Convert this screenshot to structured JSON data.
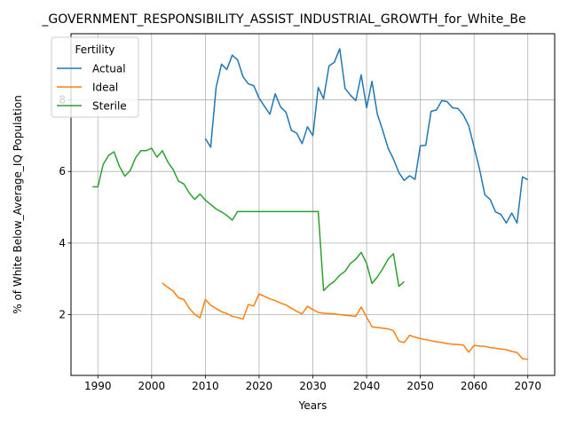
{
  "chart_data": {
    "type": "line",
    "title": "_GOVERNMENT_RESPONSIBILITY_ASSIST_INDUSTRIAL_GROWTH_for_White_Be",
    "xlabel": "Years",
    "ylabel": "% of White Below_Average_IQ Population",
    "xlim": [
      1985,
      2075
    ],
    "ylim": [
      0.3,
      9.85
    ],
    "xticks": [
      1990,
      2000,
      2010,
      2020,
      2030,
      2040,
      2050,
      2060,
      2070
    ],
    "yticks": [
      2,
      4,
      6,
      8
    ],
    "grid": true,
    "legend": {
      "title": "Fertility",
      "placement": "top-left"
    },
    "series": [
      {
        "name": "Actual",
        "color": "#1f77b4",
        "x": [
          2010,
          2011,
          2012,
          2013,
          2014,
          2015,
          2016,
          2017,
          2018,
          2019,
          2020,
          2021,
          2022,
          2023,
          2024,
          2025,
          2026,
          2027,
          2028,
          2029,
          2030,
          2031,
          2032,
          2033,
          2034,
          2035,
          2036,
          2037,
          2038,
          2039,
          2040,
          2041,
          2042,
          2043,
          2044,
          2045,
          2046,
          2047,
          2048,
          2049,
          2050,
          2051,
          2052,
          2053,
          2054,
          2055,
          2056,
          2057,
          2058,
          2059,
          2060,
          2061,
          2062,
          2063,
          2064,
          2065,
          2066,
          2067,
          2068,
          2069,
          2070
        ],
        "y": [
          6.92,
          6.68,
          8.35,
          9.0,
          8.85,
          9.25,
          9.12,
          8.65,
          8.45,
          8.4,
          8.05,
          7.82,
          7.6,
          8.17,
          7.8,
          7.66,
          7.15,
          7.07,
          6.78,
          7.25,
          7.0,
          8.35,
          8.03,
          8.95,
          9.05,
          9.43,
          8.32,
          8.13,
          7.98,
          8.7,
          7.78,
          8.52,
          7.6,
          7.15,
          6.65,
          6.35,
          5.97,
          5.75,
          5.88,
          5.78,
          6.72,
          6.73,
          7.68,
          7.72,
          7.98,
          7.95,
          7.78,
          7.76,
          7.58,
          7.28,
          6.68,
          6.08,
          5.35,
          5.22,
          4.87,
          4.8,
          4.56,
          4.84,
          4.56,
          5.85,
          5.77
        ]
      },
      {
        "name": "Ideal",
        "color": "#ff7f0e",
        "x": [
          2002,
          2003,
          2004,
          2005,
          2006,
          2007,
          2008,
          2009,
          2010,
          2011,
          2012,
          2013,
          2014,
          2015,
          2016,
          2017,
          2018,
          2019,
          2020,
          2021,
          2022,
          2023,
          2024,
          2025,
          2026,
          2027,
          2028,
          2029,
          2030,
          2031,
          2032,
          2033,
          2034,
          2035,
          2036,
          2037,
          2038,
          2039,
          2040,
          2041,
          2042,
          2043,
          2044,
          2045,
          2046,
          2047,
          2048,
          2049,
          2050,
          2051,
          2052,
          2053,
          2054,
          2055,
          2056,
          2057,
          2058,
          2059,
          2060,
          2061,
          2062,
          2063,
          2064,
          2065,
          2066,
          2067,
          2068,
          2069,
          2070
        ],
        "y": [
          2.88,
          2.76,
          2.66,
          2.47,
          2.42,
          2.18,
          2.01,
          1.91,
          2.42,
          2.26,
          2.17,
          2.08,
          2.03,
          1.95,
          1.92,
          1.87,
          2.28,
          2.24,
          2.58,
          2.51,
          2.44,
          2.39,
          2.32,
          2.27,
          2.18,
          2.09,
          2.02,
          2.23,
          2.14,
          2.06,
          2.04,
          2.03,
          2.02,
          2.0,
          1.98,
          1.97,
          1.95,
          2.21,
          1.93,
          1.66,
          1.64,
          1.62,
          1.6,
          1.55,
          1.26,
          1.22,
          1.42,
          1.37,
          1.33,
          1.3,
          1.27,
          1.24,
          1.22,
          1.19,
          1.17,
          1.16,
          1.15,
          0.95,
          1.14,
          1.12,
          1.11,
          1.08,
          1.06,
          1.04,
          1.02,
          0.97,
          0.94,
          0.77,
          0.75
        ]
      },
      {
        "name": "Sterile",
        "color": "#2ca02c",
        "x": [
          1989,
          1990,
          1991,
          1992,
          1993,
          1994,
          1995,
          1996,
          1997,
          1998,
          1999,
          2000,
          2001,
          2002,
          2003,
          2004,
          2005,
          2006,
          2007,
          2008,
          2009,
          2010,
          2011,
          2012,
          2013,
          2014,
          2015,
          2016,
          2017,
          2018,
          2019,
          2020,
          2021,
          2022,
          2023,
          2024,
          2025,
          2026,
          2027,
          2028,
          2029,
          2030,
          2031,
          2032,
          2033,
          2034,
          2035,
          2036,
          2037,
          2038,
          2039,
          2040,
          2041,
          2042,
          2043,
          2044,
          2045,
          2046,
          2047
        ],
        "y": [
          5.57,
          5.57,
          6.2,
          6.45,
          6.55,
          6.15,
          5.87,
          6.02,
          6.38,
          6.58,
          6.58,
          6.65,
          6.4,
          6.58,
          6.27,
          6.05,
          5.73,
          5.65,
          5.4,
          5.22,
          5.37,
          5.2,
          5.08,
          4.95,
          4.87,
          4.77,
          4.64,
          4.88,
          4.88,
          4.88,
          4.88,
          4.88,
          4.88,
          4.88,
          4.88,
          4.88,
          4.88,
          4.88,
          4.88,
          4.88,
          4.88,
          4.88,
          4.88,
          2.67,
          2.82,
          2.93,
          3.1,
          3.21,
          3.43,
          3.55,
          3.74,
          3.43,
          2.87,
          3.05,
          3.28,
          3.55,
          3.7,
          2.79,
          2.92
        ]
      }
    ]
  }
}
